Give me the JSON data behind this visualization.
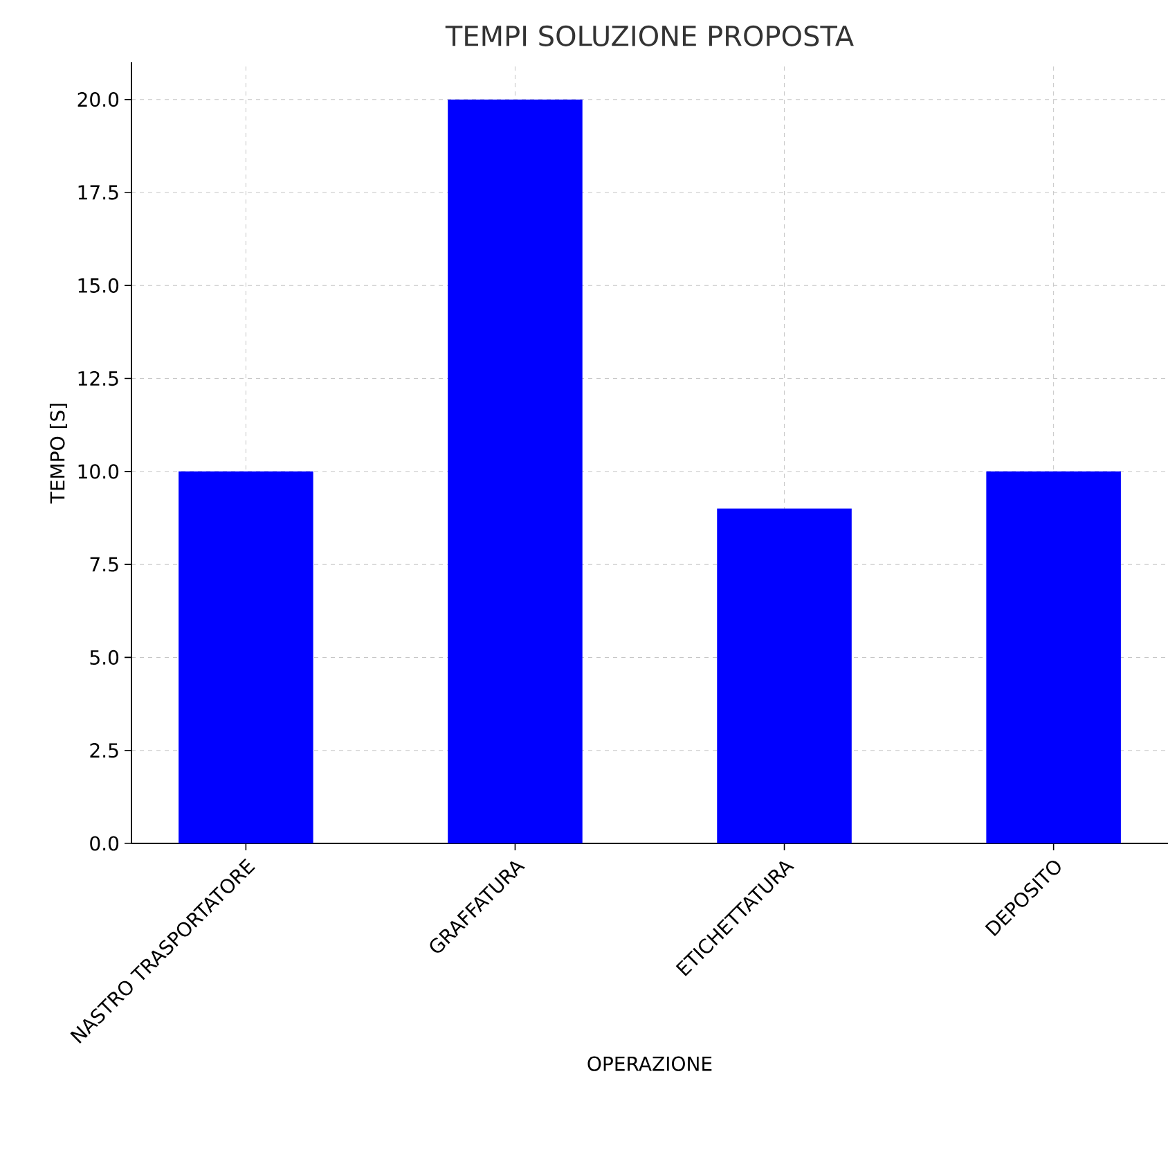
{
  "chart_data": {
    "type": "bar",
    "title": "TEMPI SOLUZIONE PROPOSTA",
    "xlabel": "OPERAZIONE",
    "ylabel": "TEMPO [S]",
    "categories": [
      "NASTRO TRASPORTATORE",
      "GRAFFATURA",
      "ETICHETTATURA",
      "DEPOSITO"
    ],
    "values": [
      10,
      20,
      9,
      10
    ],
    "color": "#0000ff",
    "ylim": [
      0,
      21
    ],
    "yticks": [
      {
        "value": 0,
        "label": "0.0"
      },
      {
        "value": 2.5,
        "label": "2.5"
      },
      {
        "value": 5,
        "label": "5.0"
      },
      {
        "value": 7.5,
        "label": "7.5"
      },
      {
        "value": 10,
        "label": "10.0"
      },
      {
        "value": 12.5,
        "label": "12.5"
      },
      {
        "value": 15,
        "label": "15.0"
      },
      {
        "value": 17.5,
        "label": "17.5"
      },
      {
        "value": 20,
        "label": "20.0"
      }
    ],
    "grid": true
  }
}
